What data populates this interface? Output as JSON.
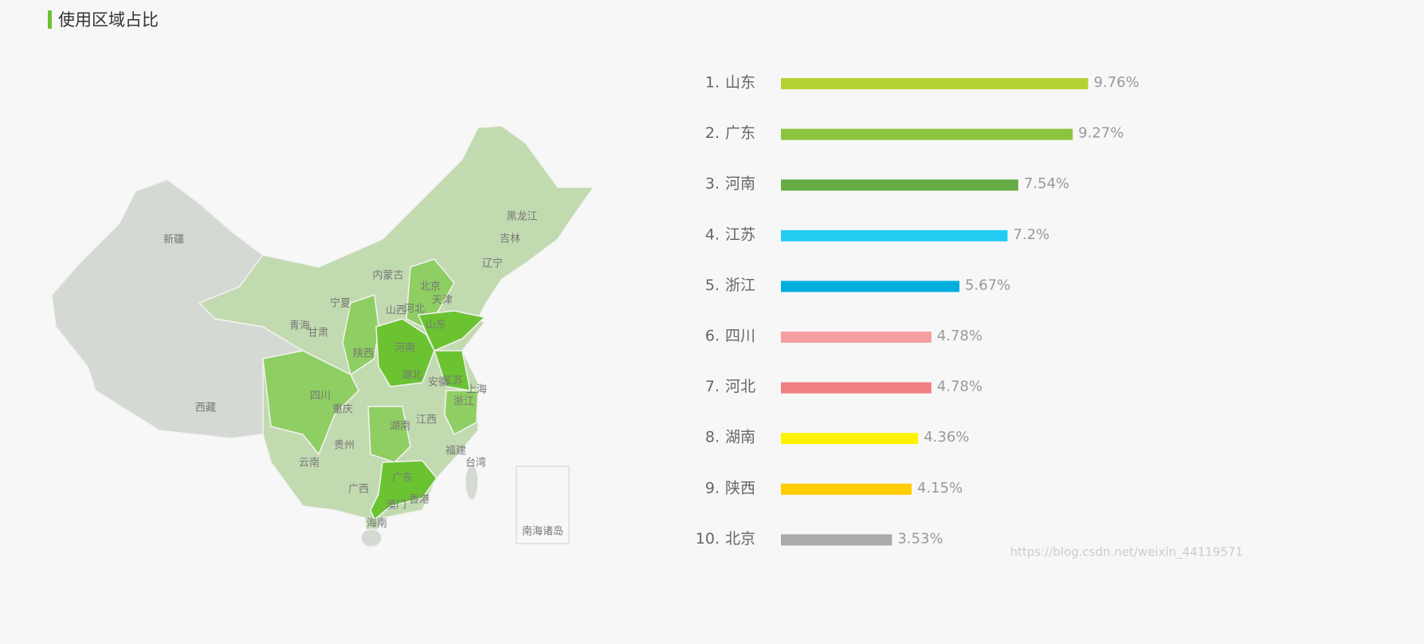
{
  "header": {
    "title": "使用区域占比"
  },
  "map": {
    "labels": [
      "新疆",
      "西藏",
      "青海",
      "甘肃",
      "宁夏",
      "内蒙古",
      "黑龙江",
      "吉林",
      "辽宁",
      "北京",
      "天津",
      "河北",
      "山西",
      "山东",
      "河南",
      "陕西",
      "四川",
      "重庆",
      "湖北",
      "安徽",
      "江苏",
      "上海",
      "浙江",
      "江西",
      "湖南",
      "贵州",
      "云南",
      "广西",
      "广东",
      "福建",
      "台湾",
      "澳门",
      "香港",
      "海南"
    ],
    "islands_label": "南海诸岛"
  },
  "chart_data": {
    "type": "bar",
    "orientation": "horizontal",
    "ranks": [
      "1.",
      "2.",
      "3.",
      "4.",
      "5.",
      "6.",
      "7.",
      "8.",
      "9.",
      "10."
    ],
    "categories": [
      "山东",
      "广东",
      "河南",
      "江苏",
      "浙江",
      "四川",
      "河北",
      "湖南",
      "陕西",
      "北京"
    ],
    "values": [
      9.76,
      9.27,
      7.54,
      7.2,
      5.67,
      4.78,
      4.78,
      4.36,
      4.15,
      3.53
    ],
    "value_labels": [
      "9.76%",
      "9.27%",
      "7.54%",
      "7.2%",
      "5.67%",
      "4.78%",
      "4.78%",
      "4.36%",
      "4.15%",
      "3.53%"
    ],
    "colors": [
      "#b4d234",
      "#8dc33e",
      "#66ab45",
      "#22cbf2",
      "#00aede",
      "#f69e9f",
      "#f0807f",
      "#fff200",
      "#ffcc00",
      "#aaaaaa"
    ],
    "xlim": [
      0,
      10
    ]
  },
  "watermark": "https://blog.csdn.net/weixin_44119571"
}
